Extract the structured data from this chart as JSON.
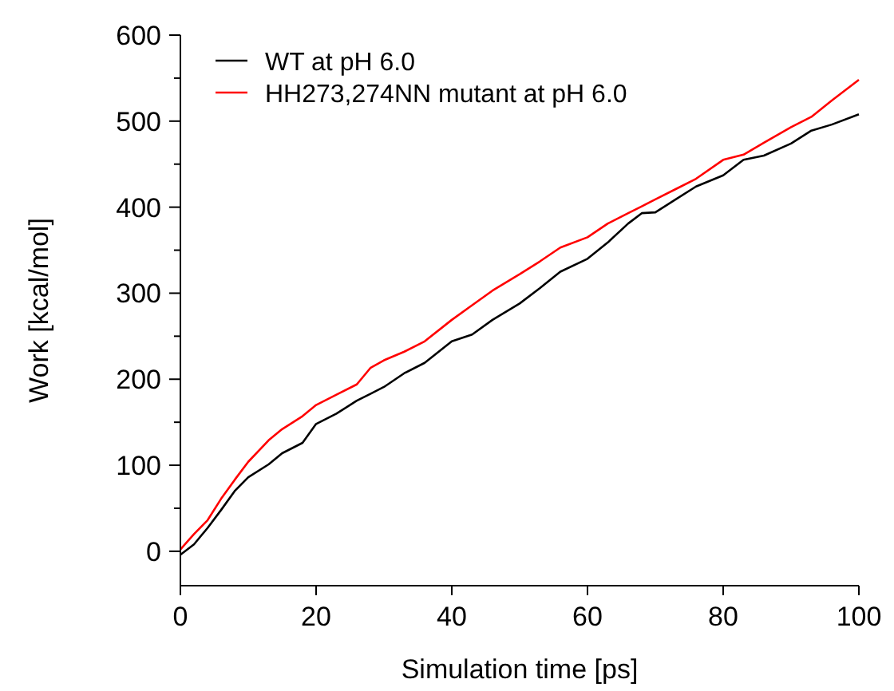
{
  "chart_data": {
    "type": "line",
    "xlabel": "Simulation time [ps]",
    "ylabel": "Work [kcal/mol]",
    "xlim": [
      0,
      100
    ],
    "xticks": [
      0,
      20,
      40,
      60,
      80,
      100
    ],
    "ylim": [
      -40,
      600
    ],
    "yticks": [
      0,
      {
        "value": 50,
        "label": null
      },
      100,
      {
        "value": 150,
        "label": null
      },
      200,
      {
        "value": 250,
        "label": null
      },
      300,
      {
        "value": 350,
        "label": null
      },
      400,
      {
        "value": 450,
        "label": null
      },
      500,
      {
        "value": 550,
        "label": null
      },
      600
    ],
    "grid": false,
    "legend": "top left",
    "marker": "none",
    "line_style": "solid",
    "x": [
      0,
      2,
      4,
      6,
      8,
      10,
      13,
      15,
      18,
      20,
      23,
      26,
      28,
      30,
      33,
      36,
      40,
      43,
      46,
      50,
      53,
      56,
      60,
      63,
      66,
      68,
      70,
      73,
      76,
      80,
      83,
      86,
      90,
      93,
      96,
      100
    ],
    "series": [
      {
        "name": "WT at pH 6.0",
        "color": "#000000",
        "values": [
          -4,
          8,
          27,
          48,
          70,
          86,
          101,
          114,
          126,
          148,
          160,
          175,
          183,
          191,
          207,
          219,
          244,
          252,
          269,
          288,
          306,
          325,
          340,
          359,
          381,
          393,
          394,
          409,
          424,
          437,
          455,
          460,
          474,
          489,
          496,
          508
        ]
      },
      {
        "name": "HH273,274NN mutant at pH 6.0",
        "color": "#ff0000",
        "values": [
          2,
          20,
          36,
          61,
          83,
          104,
          129,
          142,
          157,
          170,
          182,
          194,
          213,
          222,
          232,
          244,
          269,
          286,
          303,
          322,
          337,
          353,
          365,
          381,
          393,
          401,
          409,
          421,
          433,
          455,
          461,
          475,
          493,
          505,
          524,
          548
        ]
      }
    ]
  }
}
